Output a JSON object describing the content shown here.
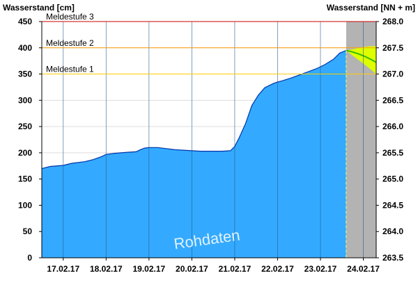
{
  "chart_data": {
    "type": "area",
    "left_axis_title": "Wasserstand [cm]",
    "right_axis_title": "Wasserstand [NN + m]",
    "watermark": "Rohdaten",
    "ylim": [
      0,
      450
    ],
    "yticks": [
      "0",
      "50",
      "100",
      "150",
      "200",
      "250",
      "300",
      "350",
      "400",
      "450"
    ],
    "ylim_right": [
      263.5,
      268.0
    ],
    "yticks_right": [
      "263.5",
      "264.0",
      "264.5",
      "265.0",
      "265.5",
      "266.0",
      "266.5",
      "267.0",
      "267.5",
      "268.0"
    ],
    "xlim_days": [
      16.5,
      24.3
    ],
    "xticks": [
      "17.02.17",
      "18.02.17",
      "19.02.17",
      "20.02.17",
      "21.02.17",
      "22.02.17",
      "23.02.17",
      "24.02.17"
    ],
    "thresholds": [
      {
        "name": "Meldestufe 3",
        "value": 450,
        "color": "#cc0000"
      },
      {
        "name": "Meldestufe 2",
        "value": 400,
        "color": "#ff9900"
      },
      {
        "name": "Meldestufe 1",
        "value": 350,
        "color": "#ffcc00"
      }
    ],
    "series": [
      {
        "color": "#33aaff",
        "x": [
          16.5,
          16.7,
          17.0,
          17.2,
          17.5,
          17.7,
          17.9,
          18.0,
          18.2,
          18.5,
          18.7,
          18.8,
          18.9,
          19.0,
          19.2,
          19.4,
          19.6,
          19.8,
          20.0,
          20.2,
          20.5,
          20.7,
          20.9,
          21.0,
          21.1,
          21.25,
          21.4,
          21.55,
          21.7,
          21.9,
          22.0,
          22.1,
          22.3,
          22.5,
          22.7,
          22.9,
          23.1,
          23.3,
          23.45,
          23.6
        ],
        "y": [
          170,
          174,
          176,
          180,
          183,
          187,
          193,
          197,
          199,
          201,
          202,
          206,
          209,
          210,
          210,
          208,
          206,
          205,
          204,
          203,
          203,
          203,
          204,
          212,
          228,
          255,
          290,
          310,
          324,
          332,
          335,
          337,
          342,
          348,
          354,
          360,
          368,
          378,
          390,
          395
        ]
      }
    ],
    "forecast": {
      "band_color": "#ddff00",
      "line_color": "#33bb00",
      "x": [
        23.6,
        23.75,
        23.9,
        24.05,
        24.2,
        24.3
      ],
      "y": [
        395,
        392,
        388,
        383,
        377,
        372
      ],
      "upper": [
        395,
        397,
        400,
        402,
        403,
        403
      ],
      "lower": [
        395,
        385,
        376,
        367,
        357,
        350
      ]
    },
    "forecast_region_color": "#b3b3b3",
    "forecast_start": 23.6
  }
}
